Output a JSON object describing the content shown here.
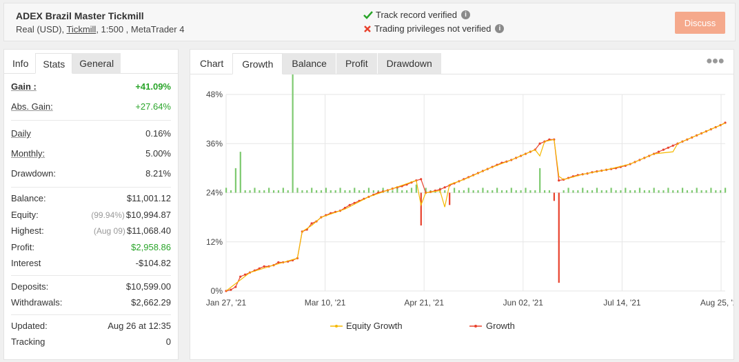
{
  "header": {
    "system_name": "ADEX Brazil Master Tickmill",
    "account_type": "Real (USD),",
    "broker": "Tickmill",
    "leverage_platform": ", 1:500 , MetaTrader 4",
    "track_record": "Track record verified",
    "trading_privileges": "Trading privileges not verified",
    "discuss_label": "Discuss"
  },
  "stats_tabs": [
    "Info",
    "Stats",
    "General"
  ],
  "stats": {
    "gain": {
      "label": "Gain :",
      "value": "+41.09%"
    },
    "abs_gain": {
      "label": "Abs. Gain:",
      "value": "+27.64%"
    },
    "daily": {
      "label": "Daily",
      "value": "0.16%"
    },
    "monthly": {
      "label": "Monthly:",
      "value": "5.00%"
    },
    "drawdown": {
      "label": "Drawdown:",
      "value": "8.21%"
    },
    "balance": {
      "label": "Balance:",
      "value": "$11,001.12"
    },
    "equity": {
      "label": "Equity:",
      "prefix": "(99.94%)",
      "value": "$10,994.87"
    },
    "highest": {
      "label": "Highest:",
      "prefix": "(Aug 09)",
      "value": "$11,068.40"
    },
    "profit": {
      "label": "Profit:",
      "value": "$2,958.86"
    },
    "interest": {
      "label": "Interest",
      "value": "-$104.82"
    },
    "deposits": {
      "label": "Deposits:",
      "value": "$10,599.00"
    },
    "withdrawals": {
      "label": "Withdrawals:",
      "value": "$2,662.29"
    },
    "updated": {
      "label": "Updated:",
      "value": "Aug 26 at 12:35"
    },
    "tracking": {
      "label": "Tracking",
      "value": "0"
    }
  },
  "chart_tabs": [
    "Chart",
    "Growth",
    "Balance",
    "Profit",
    "Drawdown"
  ],
  "colors": {
    "growth": "#e8412c",
    "equity": "#f5b800",
    "bar_positive": "#7dc96f",
    "bar_negative": "#e8412c",
    "accent_green": "#2aa52a"
  },
  "chart_data": {
    "type": "line",
    "x_ticks": [
      "Jan 27, '21",
      "Mar 10, '21",
      "Apr 21, '21",
      "Jun 02, '21",
      "Jul 14, '21",
      "Aug 25, '21"
    ],
    "y_ticks": [
      "0%",
      "12%",
      "24%",
      "36%",
      "48%"
    ],
    "ylim": [
      0,
      48
    ],
    "legend": [
      "Equity Growth",
      "Growth"
    ],
    "series": [
      {
        "name": "Growth",
        "points": [
          [
            0,
            0
          ],
          [
            1,
            0.3
          ],
          [
            2,
            1
          ],
          [
            3,
            3.5
          ],
          [
            4,
            4
          ],
          [
            5,
            4.5
          ],
          [
            6,
            5
          ],
          [
            7,
            5.5
          ],
          [
            8,
            6
          ],
          [
            9,
            6
          ],
          [
            10,
            6.3
          ],
          [
            11,
            7
          ],
          [
            12,
            7
          ],
          [
            13,
            7.2
          ],
          [
            14,
            7.5
          ],
          [
            15,
            8
          ],
          [
            16,
            14.5
          ],
          [
            17,
            15
          ],
          [
            18,
            16.5
          ],
          [
            19,
            17
          ],
          [
            20,
            18
          ],
          [
            21,
            18.5
          ],
          [
            22,
            19
          ],
          [
            23,
            19.3
          ],
          [
            24,
            19.6
          ],
          [
            25,
            20.3
          ],
          [
            26,
            21
          ],
          [
            27,
            21.5
          ],
          [
            28,
            22
          ],
          [
            29,
            22.5
          ],
          [
            30,
            23
          ],
          [
            31,
            23.5
          ],
          [
            32,
            24
          ],
          [
            33,
            24.3
          ],
          [
            34,
            24.6
          ],
          [
            35,
            25
          ],
          [
            36,
            25.3
          ],
          [
            37,
            25.6
          ],
          [
            38,
            26
          ],
          [
            39,
            26.5
          ],
          [
            40,
            27
          ],
          [
            41,
            27.3
          ],
          [
            42,
            24
          ],
          [
            43,
            24.2
          ],
          [
            44,
            24.5
          ],
          [
            45,
            24.8
          ],
          [
            46,
            25.3
          ],
          [
            47,
            25.8
          ],
          [
            48,
            26.3
          ],
          [
            49,
            26.8
          ],
          [
            50,
            27.3
          ],
          [
            51,
            27.8
          ],
          [
            52,
            28.3
          ],
          [
            53,
            28.8
          ],
          [
            54,
            29.3
          ],
          [
            55,
            29.8
          ],
          [
            56,
            30.3
          ],
          [
            57,
            30.8
          ],
          [
            58,
            31.3
          ],
          [
            59,
            31.6
          ],
          [
            60,
            32
          ],
          [
            61,
            32.5
          ],
          [
            62,
            33
          ],
          [
            63,
            33.5
          ],
          [
            64,
            34
          ],
          [
            65,
            34.5
          ],
          [
            66,
            36
          ],
          [
            67,
            36.5
          ],
          [
            68,
            37
          ],
          [
            69,
            37
          ],
          [
            70,
            27
          ],
          [
            71,
            27.2
          ],
          [
            72,
            27.6
          ],
          [
            73,
            28
          ],
          [
            74,
            28.3
          ],
          [
            75,
            28.5
          ],
          [
            76,
            28.7
          ],
          [
            77,
            29
          ],
          [
            78,
            29.2
          ],
          [
            79,
            29.4
          ],
          [
            80,
            29.6
          ],
          [
            81,
            29.8
          ],
          [
            82,
            30
          ],
          [
            83,
            30.3
          ],
          [
            84,
            30.6
          ],
          [
            85,
            31
          ],
          [
            86,
            31.5
          ],
          [
            87,
            32
          ],
          [
            88,
            32.5
          ],
          [
            89,
            33
          ],
          [
            90,
            33.5
          ],
          [
            91,
            34
          ],
          [
            92,
            34.5
          ],
          [
            93,
            35
          ],
          [
            94,
            35.5
          ],
          [
            95,
            36
          ],
          [
            96,
            36.5
          ],
          [
            97,
            37
          ],
          [
            98,
            37.5
          ],
          [
            99,
            38
          ],
          [
            100,
            38.5
          ],
          [
            101,
            39
          ],
          [
            102,
            39.5
          ],
          [
            103,
            40
          ],
          [
            104,
            40.5
          ],
          [
            105,
            41.09
          ]
        ]
      },
      {
        "name": "Equity Growth",
        "points": [
          [
            0,
            0
          ],
          [
            5,
            4.5
          ],
          [
            10,
            6.3
          ],
          [
            15,
            8
          ],
          [
            16,
            14.5
          ],
          [
            18,
            16
          ],
          [
            20,
            18
          ],
          [
            25,
            20
          ],
          [
            30,
            23
          ],
          [
            35,
            25
          ],
          [
            40,
            27
          ],
          [
            41,
            21
          ],
          [
            42,
            24
          ],
          [
            45,
            24.5
          ],
          [
            46,
            20.5
          ],
          [
            47,
            26
          ],
          [
            50,
            27.2
          ],
          [
            55,
            29.8
          ],
          [
            60,
            32
          ],
          [
            65,
            34.5
          ],
          [
            66,
            33
          ],
          [
            67,
            36.5
          ],
          [
            69,
            37
          ],
          [
            70,
            28
          ],
          [
            71,
            27.2
          ],
          [
            75,
            28.5
          ],
          [
            80,
            29.6
          ],
          [
            85,
            31
          ],
          [
            90,
            33.5
          ],
          [
            94,
            34
          ],
          [
            95,
            36
          ],
          [
            100,
            38.5
          ],
          [
            105,
            41
          ]
        ]
      }
    ],
    "daily_bars": [
      {
        "x": 2,
        "value": 6
      },
      {
        "x": 3,
        "value": 10
      },
      {
        "x": 14,
        "value": 34
      },
      {
        "x": 40,
        "value": 2
      },
      {
        "x": 41,
        "value": -8
      },
      {
        "x": 47,
        "value": -3
      },
      {
        "x": 66,
        "value": 6
      },
      {
        "x": 69,
        "value": -2
      },
      {
        "x": 70,
        "value": -22
      }
    ]
  }
}
